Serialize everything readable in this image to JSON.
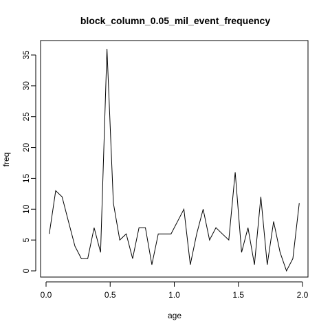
{
  "chart_data": {
    "type": "line",
    "title": "block_column_0.05_mil_event_frequency",
    "xlabel": "age",
    "ylabel": "freq",
    "xlim": [
      0.0,
      2.0
    ],
    "ylim": [
      0,
      36
    ],
    "x_ticks": [
      0.0,
      0.5,
      1.0,
      1.5,
      2.0
    ],
    "x_tick_labels": [
      "0.0",
      "0.5",
      "1.0",
      "1.5",
      "2.0"
    ],
    "y_ticks": [
      0,
      5,
      10,
      15,
      20,
      25,
      30,
      35
    ],
    "y_tick_labels": [
      "0",
      "5",
      "10",
      "15",
      "20",
      "25",
      "30",
      "35"
    ],
    "grid": false,
    "line_color": "#000000",
    "series": [
      {
        "x": [
          0.025,
          0.075,
          0.125,
          0.175,
          0.225,
          0.275,
          0.325,
          0.375,
          0.425,
          0.475,
          0.525,
          0.575,
          0.625,
          0.675,
          0.725,
          0.775,
          0.825,
          0.875,
          0.925,
          0.975,
          1.025,
          1.075,
          1.125,
          1.175,
          1.225,
          1.275,
          1.325,
          1.375,
          1.425,
          1.475,
          1.525,
          1.575,
          1.625,
          1.675,
          1.725,
          1.775,
          1.825,
          1.875,
          1.925,
          1.975
        ],
        "values": [
          6,
          13,
          12,
          8,
          4,
          2,
          2,
          7,
          3,
          36,
          11,
          5,
          6,
          2,
          7,
          7,
          1,
          6,
          6,
          6,
          8,
          10,
          1,
          6,
          10,
          5,
          7,
          6,
          5,
          16,
          3,
          7,
          1,
          12,
          1,
          8,
          3,
          0,
          2,
          11
        ]
      }
    ]
  }
}
